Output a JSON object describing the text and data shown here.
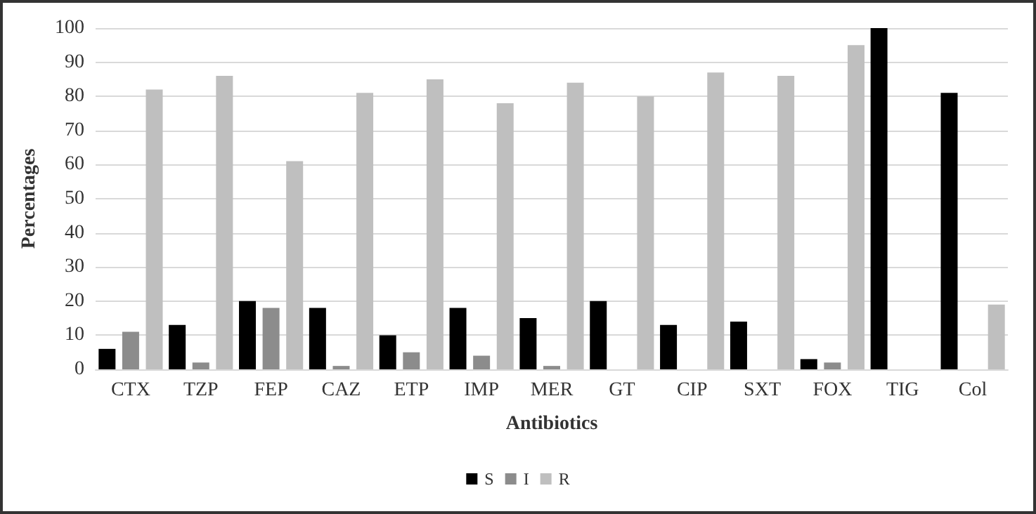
{
  "chart_data": {
    "type": "bar",
    "xlabel": "Antibiotics",
    "ylabel": "Percentages",
    "categories": [
      "CTX",
      "TZP",
      "FEP",
      "CAZ",
      "ETP",
      "IMP",
      "MER",
      "GT",
      "CIP",
      "SXT",
      "FOX",
      "TIG",
      "Col"
    ],
    "series": [
      {
        "name": "S",
        "color": "#000000",
        "values": [
          6,
          13,
          20,
          18,
          10,
          18,
          15,
          20,
          13,
          14,
          3,
          100,
          81
        ]
      },
      {
        "name": "I",
        "color": "#8c8c8c",
        "values": [
          11,
          2,
          18,
          1,
          5,
          4,
          1,
          0,
          0,
          0,
          2,
          0,
          0
        ]
      },
      {
        "name": "R",
        "color": "#bfbfbf",
        "values": [
          82,
          86,
          61,
          81,
          85,
          78,
          84,
          80,
          87,
          86,
          95,
          0,
          19
        ]
      }
    ],
    "ylim": [
      0,
      100
    ],
    "yticks": [
      0,
      10,
      20,
      30,
      40,
      50,
      60,
      70,
      80,
      90,
      100
    ],
    "grid": "y",
    "legend": "bottom"
  }
}
